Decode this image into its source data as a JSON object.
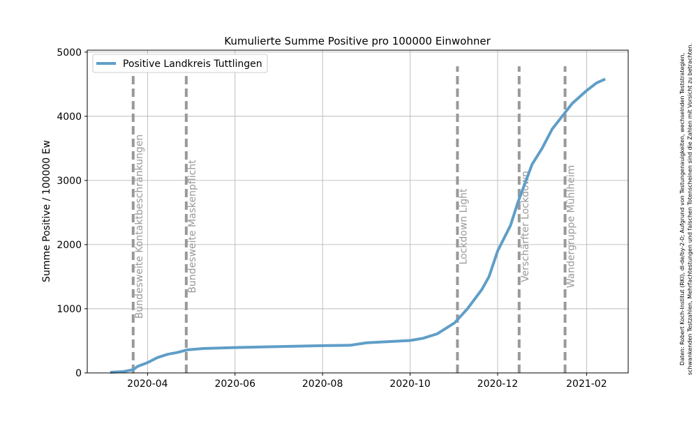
{
  "chart_data": {
    "type": "line",
    "title": "Kumulierte Summe Positive pro 100000 Einwohner",
    "ylabel": "Summe Positive / 100000 Ew",
    "x": [
      "2020-03-06",
      "2020-03-15",
      "2020-03-22",
      "2020-03-25",
      "2020-04-01",
      "2020-04-08",
      "2020-04-15",
      "2020-04-22",
      "2020-04-29",
      "2020-05-10",
      "2020-06-01",
      "2020-07-01",
      "2020-08-01",
      "2020-08-20",
      "2020-09-01",
      "2020-10-01",
      "2020-10-10",
      "2020-10-20",
      "2020-11-01",
      "2020-11-10",
      "2020-11-20",
      "2020-11-25",
      "2020-12-01",
      "2020-12-10",
      "2020-12-15",
      "2020-12-20",
      "2020-12-25",
      "2021-01-01",
      "2021-01-08",
      "2021-01-15",
      "2021-01-22",
      "2021-02-01",
      "2021-02-08",
      "2021-02-14"
    ],
    "series": [
      {
        "name": "Positive Landkreis Tuttlingen",
        "color": "#5f9ec8",
        "values": [
          10,
          20,
          50,
          100,
          160,
          240,
          290,
          320,
          360,
          380,
          395,
          410,
          425,
          430,
          470,
          505,
          540,
          610,
          780,
          1000,
          1300,
          1500,
          1900,
          2300,
          2650,
          2950,
          3250,
          3500,
          3800,
          4000,
          4200,
          4400,
          4520,
          4580
        ]
      }
    ],
    "events": [
      {
        "date": "2020-03-22",
        "label": "Bundesweite Kontaktbeschränkungen"
      },
      {
        "date": "2020-04-28",
        "label": "Bundesweite Maskenpflicht"
      },
      {
        "date": "2020-11-03",
        "label": "Lockdown Light"
      },
      {
        "date": "2020-12-16",
        "label": "Verschärfter Lockdown"
      },
      {
        "date": "2021-01-17",
        "label": "Wandergruppe Mühlheim"
      }
    ],
    "event_color": "#999999",
    "xlim": [
      "2020-02-19",
      "2021-03-02"
    ],
    "xticks": [
      {
        "value": "2020-04-01",
        "label": "2020-04"
      },
      {
        "value": "2020-06-01",
        "label": "2020-06"
      },
      {
        "value": "2020-08-01",
        "label": "2020-08"
      },
      {
        "value": "2020-10-01",
        "label": "2020-10"
      },
      {
        "value": "2020-12-01",
        "label": "2020-12"
      },
      {
        "value": "2021-02-01",
        "label": "2021-02"
      }
    ],
    "ylim": [
      0,
      5030
    ],
    "yticks": [
      0,
      1000,
      2000,
      3000,
      4000,
      5000
    ],
    "grid": true,
    "legend": "upper left",
    "note": [
      "Daten: Robert Koch-Institut (RKI), dl-de/by-2-0; Aufgrund von Testungenauigkeiten, wechselnden Teststrategien,",
      "schwankenden Testzahlen, Mehrfachtestungen und falschen Totenscheinen sind die Zahlen mit Vorsicht zu betrachten."
    ]
  }
}
